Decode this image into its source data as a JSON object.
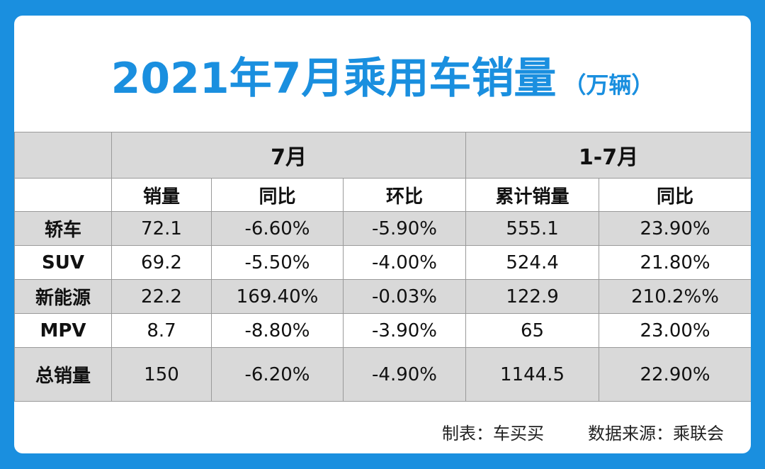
{
  "title": "2021年7月乘用车销量",
  "unit": "（万辆）",
  "chart_data": {
    "type": "table",
    "group_headers": [
      "7月",
      "1-7月"
    ],
    "columns": [
      "销量",
      "同比",
      "环比",
      "累计销量",
      "同比"
    ],
    "rows": [
      {
        "label": "轿车",
        "values": [
          "72.1",
          "-6.60%",
          "-5.90%",
          "555.1",
          "23.90%"
        ]
      },
      {
        "label": "SUV",
        "values": [
          "69.2",
          "-5.50%",
          "-4.00%",
          "524.4",
          "21.80%"
        ]
      },
      {
        "label": "新能源",
        "values": [
          "22.2",
          "169.40%",
          "-0.03%",
          "122.9",
          "210.2%%"
        ]
      },
      {
        "label": "MPV",
        "values": [
          "8.7",
          "-8.80%",
          "-3.90%",
          "65",
          "23.00%"
        ]
      },
      {
        "label": "总销量",
        "values": [
          "150",
          "-6.20%",
          "-4.90%",
          "1144.5",
          "22.90%"
        ]
      }
    ]
  },
  "colors": {
    "accent": "#1a8fdf",
    "positive": "#e0141e",
    "negative": "#22a535",
    "header_bg": "#d9d9d9"
  },
  "footer": {
    "maker": "制表：车买买",
    "source": "数据来源：乘联会"
  }
}
